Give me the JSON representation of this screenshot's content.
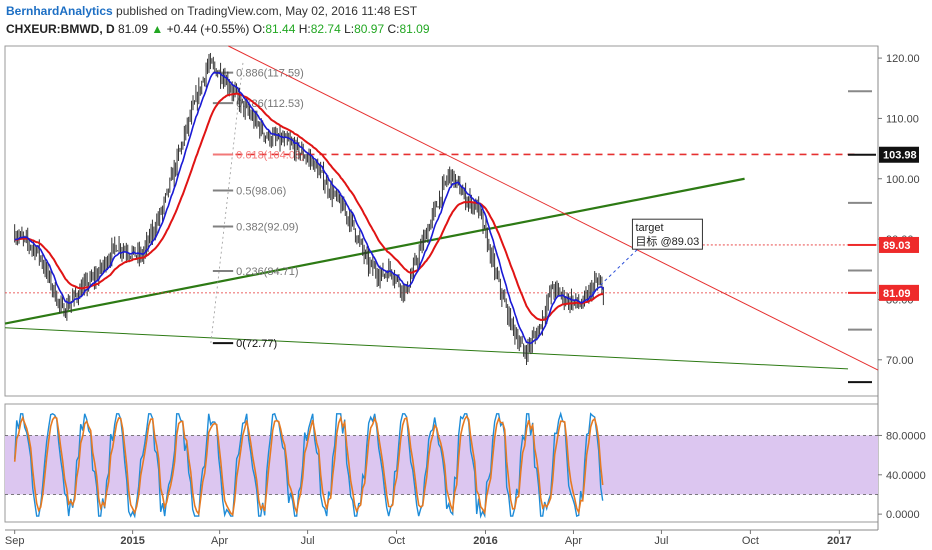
{
  "header": {
    "author": "BernhardAnalytics",
    "published": "published on TradingView.com, May 02, 2016 11:48 EST"
  },
  "symbol_line": {
    "symbol": "CHXEUR:BMWD, D",
    "last": "81.09",
    "arrow": "▲",
    "change": "+0.44 (+0.55%)",
    "open_label": "O:",
    "open": "81.44",
    "high_label": "H:",
    "high": "82.74",
    "low_label": "L:",
    "low": "80.97",
    "close_label": "C:",
    "close": "81.09"
  },
  "colors": {
    "candle": "#333333",
    "ema_fast": "#1a1ad6",
    "ema_slow": "#e01414",
    "trend_green": "#2d7a14",
    "resistance_red": "#e63030",
    "fib": "#808080",
    "stoch_fill": "#dcc6f0",
    "stoch_k": "#1e8cd8",
    "stoch_d": "#e67a22"
  },
  "chart_data": [
    {
      "type": "candlestick",
      "price_axis": {
        "ticks": [
          "120.00",
          "110.00",
          "100.00",
          "90.00",
          "80.00",
          "70.00"
        ],
        "ylim": [
          64,
          122
        ]
      },
      "time_axis": {
        "ticks": [
          "Sep",
          "2015",
          "Apr",
          "Jul",
          "Oct",
          "2016",
          "Apr",
          "Jul",
          "Oct",
          "2017"
        ]
      },
      "price_path": [
        {
          "t": "2014-09-01",
          "v": 91
        },
        {
          "t": "2014-09-25",
          "v": 88
        },
        {
          "t": "2014-10-20",
          "v": 78
        },
        {
          "t": "2014-11-05",
          "v": 81
        },
        {
          "t": "2014-11-25",
          "v": 84
        },
        {
          "t": "2014-12-15",
          "v": 89
        },
        {
          "t": "2015-01-10",
          "v": 87
        },
        {
          "t": "2015-02-01",
          "v": 95
        },
        {
          "t": "2015-02-25",
          "v": 108
        },
        {
          "t": "2015-03-20",
          "v": 119
        },
        {
          "t": "2015-04-05",
          "v": 117
        },
        {
          "t": "2015-04-25",
          "v": 112
        },
        {
          "t": "2015-05-20",
          "v": 107
        },
        {
          "t": "2015-06-10",
          "v": 106
        },
        {
          "t": "2015-07-05",
          "v": 103
        },
        {
          "t": "2015-07-25",
          "v": 98
        },
        {
          "t": "2015-08-15",
          "v": 93
        },
        {
          "t": "2015-09-01",
          "v": 86
        },
        {
          "t": "2015-09-15",
          "v": 84
        },
        {
          "t": "2015-09-25",
          "v": 85
        },
        {
          "t": "2015-10-10",
          "v": 81
        },
        {
          "t": "2015-10-25",
          "v": 88
        },
        {
          "t": "2015-11-10",
          "v": 95
        },
        {
          "t": "2015-11-25",
          "v": 101
        },
        {
          "t": "2015-12-10",
          "v": 97
        },
        {
          "t": "2015-12-25",
          "v": 95
        },
        {
          "t": "2016-01-10",
          "v": 85
        },
        {
          "t": "2016-01-25",
          "v": 77
        },
        {
          "t": "2016-02-10",
          "v": 71
        },
        {
          "t": "2016-02-25",
          "v": 75
        },
        {
          "t": "2016-03-10",
          "v": 82
        },
        {
          "t": "2016-03-25",
          "v": 80
        },
        {
          "t": "2016-04-10",
          "v": 79
        },
        {
          "t": "2016-04-25",
          "v": 83
        },
        {
          "t": "2016-05-02",
          "v": 81
        }
      ],
      "fibonacci": [
        {
          "label": "0.886(117.59)",
          "value": 117.59
        },
        {
          "label": "0.786(112.53)",
          "value": 112.53
        },
        {
          "label": "0.618(104.03)",
          "value": 104.03
        },
        {
          "label": "0.5(98.06)",
          "value": 98.06
        },
        {
          "label": "0.382(92.09)",
          "value": 92.09
        },
        {
          "label": "0.236(84.71)",
          "value": 84.71
        },
        {
          "label": "0(72.77)",
          "value": 72.77
        }
      ],
      "price_labels": [
        {
          "label": "103.98",
          "value": 103.98,
          "style": "dark"
        },
        {
          "label": "89.03",
          "value": 89.03,
          "style": "red"
        },
        {
          "label": "81.09",
          "value": 81.09,
          "style": "red"
        }
      ],
      "annotation": {
        "title": "target",
        "text": "目标 @89.03",
        "target_value": 89.03
      }
    },
    {
      "type": "line",
      "name": "stochastic",
      "ylim": [
        -8,
        112
      ],
      "ticks": [
        "80.0000",
        "40.0000",
        "0.0000"
      ],
      "bands": [
        20,
        80
      ]
    }
  ]
}
